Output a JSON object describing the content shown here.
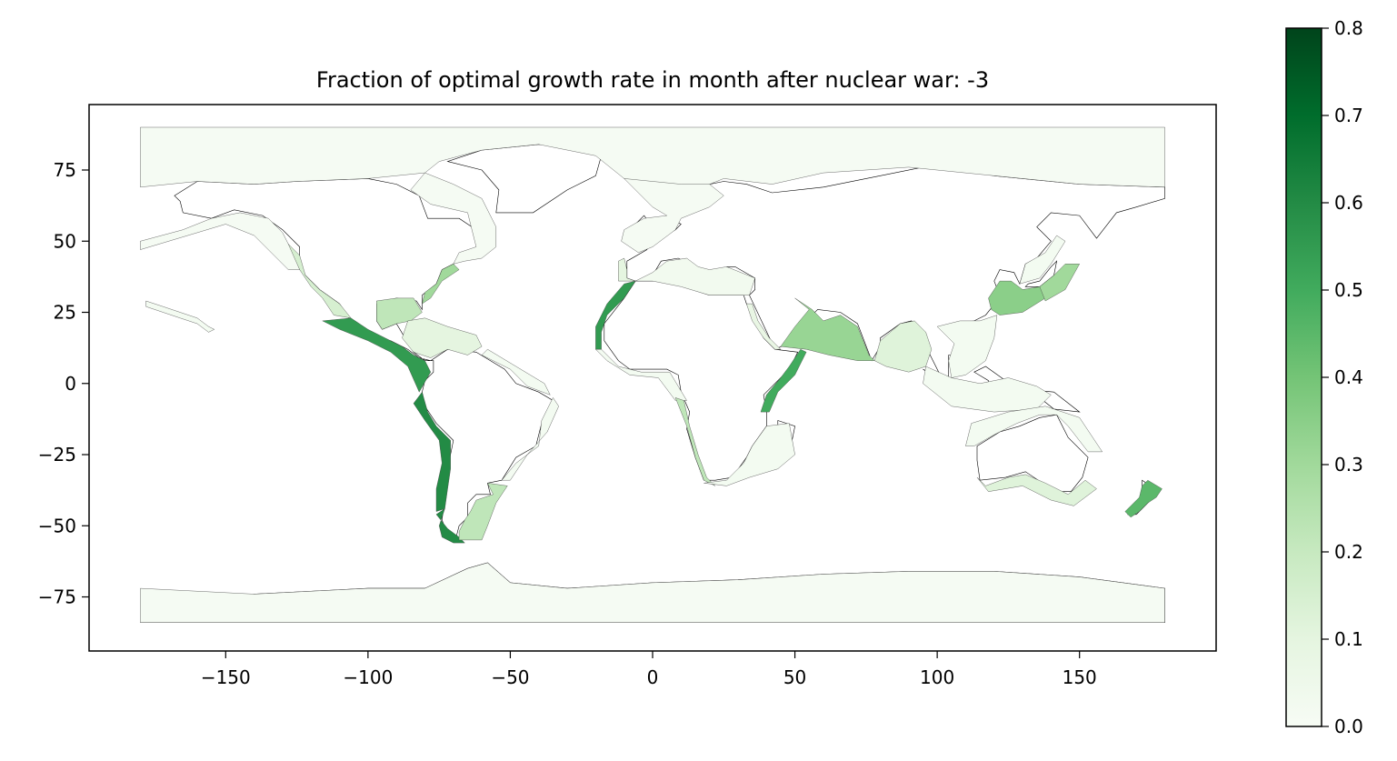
{
  "chart_data": {
    "type": "choropleth-map",
    "title": "Fraction of optimal growth rate in month after nuclear war: -3",
    "xlim": [
      -198,
      198
    ],
    "ylim": [
      -94,
      98
    ],
    "xticks": [
      -150,
      -100,
      -50,
      0,
      50,
      100,
      150
    ],
    "yticks": [
      75,
      50,
      25,
      0,
      -25,
      -50,
      -75
    ],
    "xtick_labels": [
      "−150",
      "−100",
      "−50",
      "0",
      "50",
      "100",
      "150"
    ],
    "ytick_labels": [
      "75",
      "50",
      "25",
      "0",
      "−25",
      "−50",
      "−75"
    ],
    "grid": false,
    "colorbar": {
      "cmap": "Greens",
      "vmin": 0.0,
      "vmax": 0.8,
      "ticks": [
        0.0,
        0.1,
        0.2,
        0.3,
        0.4,
        0.5,
        0.6,
        0.7,
        0.8
      ],
      "tick_labels": [
        "0.0",
        "0.1",
        "0.2",
        "0.3",
        "0.4",
        "0.5",
        "0.6",
        "0.7",
        "0.8"
      ],
      "colors": [
        "#f7fcf5",
        "#e5f5e0",
        "#c7e9c0",
        "#a1d99b",
        "#74c476",
        "#41ab5d",
        "#238b45",
        "#006d2c",
        "#00441b"
      ]
    },
    "regions": [
      {
        "name": "Arctic ocean",
        "value": 0.01
      },
      {
        "name": "Southern ocean",
        "value": 0.01
      },
      {
        "name": "North Pacific",
        "value": 0.01
      },
      {
        "name": "NE Atlantic shelf",
        "value": 0.01
      },
      {
        "name": "NW Atlantic shelf",
        "value": 0.01
      },
      {
        "name": "California current",
        "value": 0.15
      },
      {
        "name": "Hawaiian chain",
        "value": 0.02
      },
      {
        "name": "Gulf of Mexico",
        "value": 0.22
      },
      {
        "name": "US Atlantic shelf",
        "value": 0.3
      },
      {
        "name": "Caribbean",
        "value": 0.1
      },
      {
        "name": "Pacific Central American",
        "value": 0.55
      },
      {
        "name": "Humboldt current",
        "value": 0.6
      },
      {
        "name": "Chilean fjords",
        "value": 0.6
      },
      {
        "name": "Patagonian shelf",
        "value": 0.22
      },
      {
        "name": "North Brazil shelf",
        "value": 0.02
      },
      {
        "name": "East Brazil shelf",
        "value": 0.02
      },
      {
        "name": "Iberian coast",
        "value": 0.1
      },
      {
        "name": "Canary current",
        "value": 0.55
      },
      {
        "name": "Mediterranean",
        "value": 0.03
      },
      {
        "name": "Guinea current",
        "value": 0.02
      },
      {
        "name": "Benguela current",
        "value": 0.22
      },
      {
        "name": "Agulhas current",
        "value": 0.02
      },
      {
        "name": "Red Sea",
        "value": 0.08
      },
      {
        "name": "Somali current",
        "value": 0.5
      },
      {
        "name": "Arabian Sea",
        "value": 0.32
      },
      {
        "name": "Bay of Bengal",
        "value": 0.12
      },
      {
        "name": "South China Sea",
        "value": 0.02
      },
      {
        "name": "East China Sea",
        "value": 0.35
      },
      {
        "name": "Kuroshio current",
        "value": 0.3
      },
      {
        "name": "Sea of Japan",
        "value": 0.02
      },
      {
        "name": "Indonesian sea",
        "value": 0.02
      },
      {
        "name": "North Australian shelf",
        "value": 0.02
      },
      {
        "name": "South Australian shelf",
        "value": 0.12
      },
      {
        "name": "New Zealand shelf",
        "value": 0.45
      }
    ]
  }
}
